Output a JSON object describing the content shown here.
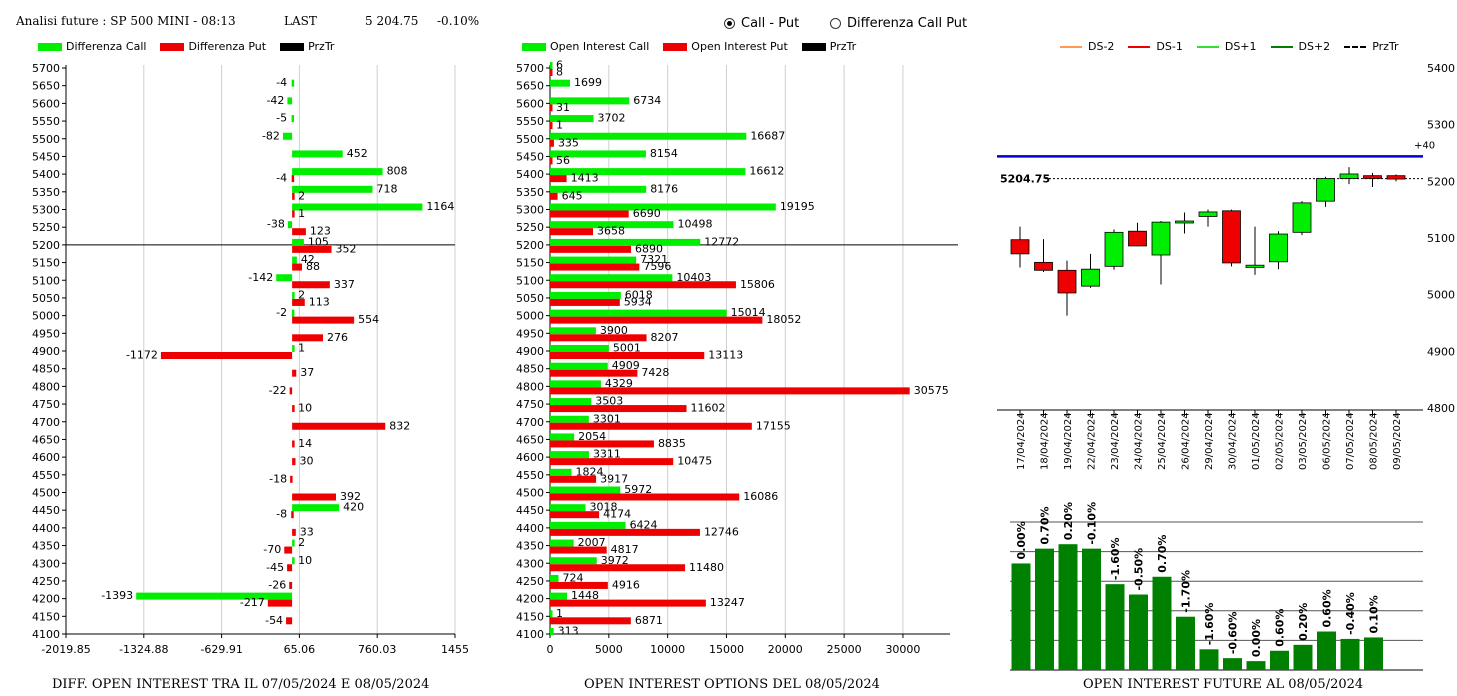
{
  "header": {
    "title": "Analisi future : SP 500 MINI - 08:13",
    "last_label": "LAST",
    "last_value": "5 204.75",
    "change": "-0.10%"
  },
  "radio": {
    "option1": "Call - Put",
    "option2": "Differenza Call Put",
    "selected": "Call - Put"
  },
  "colors": {
    "green": "#00ee00",
    "red": "#ee0000",
    "dark_green": "#008000",
    "blue": "#0000cc",
    "black": "#000000",
    "orange": "#ff9955"
  },
  "captions": {
    "left": "DIFF. OPEN INTEREST TRA IL 07/05/2024 E 08/05/2024",
    "mid": "OPEN INTEREST OPTIONS DEL 08/05/2024",
    "right": "OPEN INTEREST FUTURE AL 08/05/2024"
  },
  "chart_data": [
    {
      "type": "bar",
      "orientation": "horizontal",
      "legend": [
        "Differenza Call",
        "Differenza Put",
        "PrzTr"
      ],
      "strikes": [
        5700,
        5650,
        5600,
        5550,
        5500,
        5450,
        5400,
        5350,
        5300,
        5250,
        5200,
        5150,
        5100,
        5050,
        5000,
        4950,
        4900,
        4850,
        4800,
        4750,
        4700,
        4650,
        4600,
        4550,
        4500,
        4450,
        4400,
        4350,
        4300,
        4250,
        4200,
        4150,
        4100
      ],
      "series": [
        {
          "name": "Differenza Call",
          "values": [
            null,
            -4,
            -42,
            -5,
            -82,
            452,
            808,
            718,
            1164,
            -38,
            105,
            42,
            -142,
            2,
            -2,
            null,
            1,
            null,
            null,
            null,
            null,
            null,
            null,
            null,
            null,
            420,
            null,
            2,
            10,
            null,
            -1393,
            null,
            null
          ]
        },
        {
          "name": "Differenza Put",
          "values": [
            null,
            null,
            null,
            null,
            null,
            null,
            -4,
            2,
            1,
            123,
            352,
            88,
            337,
            113,
            554,
            276,
            -1172,
            37,
            -22,
            10,
            832,
            14,
            30,
            -18,
            392,
            -8,
            33,
            -70,
            -45,
            -26,
            -217,
            -54,
            null
          ]
        }
      ],
      "xticks": [
        "-2019.85",
        "-1324.88",
        "-629.91",
        "65.06",
        "760.03",
        "1455"
      ],
      "xlim": [
        -2019.85,
        1455
      ],
      "price_line": 5200
    },
    {
      "type": "bar",
      "orientation": "horizontal",
      "legend": [
        "Open Interest Call",
        "Open Interest Put",
        "PrzTr"
      ],
      "strikes": [
        5700,
        5650,
        5600,
        5550,
        5500,
        5450,
        5400,
        5350,
        5300,
        5250,
        5200,
        5150,
        5100,
        5050,
        5000,
        4950,
        4900,
        4850,
        4800,
        4750,
        4700,
        4650,
        4600,
        4550,
        4500,
        4450,
        4400,
        4350,
        4300,
        4250,
        4200,
        4150,
        4100
      ],
      "series": [
        {
          "name": "Open Interest Call",
          "values": [
            6,
            1699,
            6734,
            3702,
            16687,
            8154,
            16612,
            8176,
            19195,
            10498,
            12772,
            7321,
            10403,
            6018,
            15014,
            3900,
            5001,
            4909,
            4329,
            3503,
            3301,
            2054,
            3311,
            1824,
            5972,
            3018,
            6424,
            2007,
            3972,
            724,
            1448,
            1,
            313
          ]
        },
        {
          "name": "Open Interest Put",
          "values": [
            8,
            null,
            31,
            1,
            335,
            56,
            1413,
            645,
            6690,
            3658,
            6890,
            7596,
            15806,
            5934,
            18052,
            8207,
            13113,
            7428,
            30575,
            11602,
            17155,
            8835,
            10475,
            3917,
            16086,
            4174,
            12746,
            4817,
            11480,
            4916,
            13247,
            6871,
            null
          ]
        }
      ],
      "xticks": [
        "0",
        "5000",
        "10000",
        "15000",
        "20000",
        "25000",
        "30000"
      ],
      "xlim": [
        0,
        34000
      ],
      "price_line": 5200
    },
    {
      "type": "candlestick",
      "legend": [
        "DS-2",
        "DS-1",
        "DS+1",
        "DS+2",
        "PrzTr"
      ],
      "dates": [
        "17/04/2024",
        "18/04/2024",
        "19/04/2024",
        "22/04/2024",
        "23/04/2024",
        "24/04/2024",
        "25/04/2024",
        "26/04/2024",
        "29/04/2024",
        "30/04/2024",
        "01/05/2024",
        "02/05/2024",
        "03/05/2024",
        "06/05/2024",
        "07/05/2024",
        "08/05/2024",
        "09/05/2024"
      ],
      "ohlc": [
        [
          5097,
          5120,
          5048,
          5072
        ],
        [
          5057,
          5098,
          5040,
          5043
        ],
        [
          5043,
          5060,
          4963,
          5003
        ],
        [
          5015,
          5072,
          5012,
          5045
        ],
        [
          5050,
          5115,
          5044,
          5110
        ],
        [
          5112,
          5127,
          5085,
          5086
        ],
        [
          5070,
          5130,
          5018,
          5128
        ],
        [
          5130,
          5145,
          5108,
          5130
        ],
        [
          5138,
          5150,
          5120,
          5146
        ],
        [
          5148,
          5150,
          5050,
          5056
        ],
        [
          5048,
          5120,
          5035,
          5052
        ],
        [
          5058,
          5112,
          5045,
          5107
        ],
        [
          5110,
          5165,
          5105,
          5162
        ],
        [
          5165,
          5208,
          5155,
          5205
        ],
        [
          5205,
          5225,
          5195,
          5213
        ],
        [
          5210,
          5215,
          5190,
          5205
        ],
        [
          5210,
          5212,
          5200,
          5204
        ]
      ],
      "ylim": [
        4800,
        5400
      ],
      "yticks": [
        "4800",
        "4900",
        "5000",
        "5100",
        "5200",
        "5300",
        "5400"
      ],
      "last_price": "5204.75",
      "blue_level": 5244,
      "blue_label": "+40"
    },
    {
      "type": "bar",
      "title": "OPEN INTEREST FUTURE AL 08/05/2024",
      "labels": [
        "0.00%",
        "0.70%",
        "0.20%",
        "-0.10%",
        "-1.60%",
        "-0.50%",
        "0.70%",
        "-1.70%",
        "-1.60%",
        "-0.60%",
        "0.00%",
        "0.60%",
        "0.20%",
        "0.60%",
        "-0.40%",
        "0.10%"
      ],
      "values": [
        72,
        82,
        85,
        82,
        58,
        51,
        63,
        36,
        14,
        8,
        6,
        13,
        17,
        26,
        21,
        22
      ]
    }
  ]
}
